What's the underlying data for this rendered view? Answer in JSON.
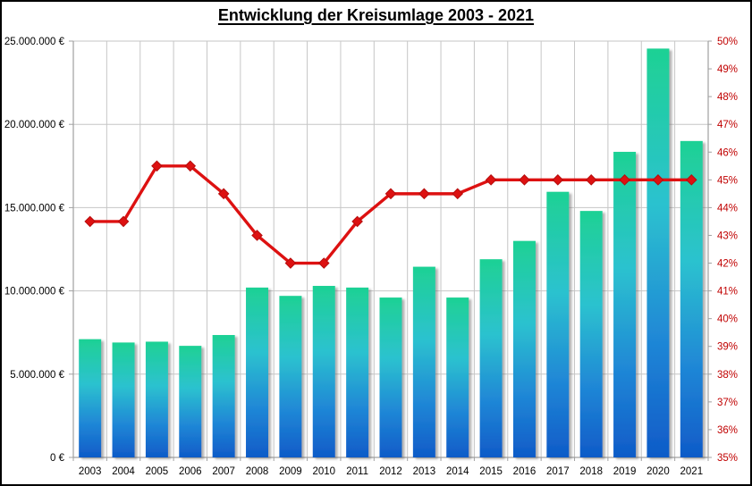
{
  "chart_data": {
    "type": "combo_bar_line",
    "title": "Entwicklung der Kreisumlage 2003 - 2021",
    "categories": [
      "2003",
      "2004",
      "2005",
      "2006",
      "2007",
      "2008",
      "2009",
      "2010",
      "2011",
      "2012",
      "2013",
      "2014",
      "2015",
      "2016",
      "2017",
      "2018",
      "2019",
      "2020",
      "2021"
    ],
    "bar_series": {
      "axis": "left",
      "unit": "EUR",
      "values": [
        7100000,
        6900000,
        6950000,
        6700000,
        7350000,
        10200000,
        9700000,
        10300000,
        10200000,
        9600000,
        11450000,
        9600000,
        11900000,
        13000000,
        15950000,
        14800000,
        18350000,
        24550000,
        19000000
      ]
    },
    "line_series": {
      "axis": "right",
      "unit": "percent",
      "values": [
        43.5,
        43.5,
        45.5,
        45.5,
        44.5,
        43.0,
        42.0,
        42.0,
        43.5,
        44.5,
        44.5,
        44.5,
        45.0,
        45.0,
        45.0,
        45.0,
        45.0,
        45.0,
        45.0
      ]
    },
    "left_axis": {
      "min": 0,
      "max": 25000000,
      "step": 5000000,
      "tick_labels": [
        "0 €",
        "5.000.000 €",
        "10.000.000 €",
        "15.000.000 €",
        "20.000.000 €",
        "25.000.000 €"
      ]
    },
    "right_axis": {
      "min": 35,
      "max": 50,
      "step": 1,
      "tick_labels": [
        "35%",
        "36%",
        "37%",
        "38%",
        "39%",
        "40%",
        "41%",
        "42%",
        "43%",
        "44%",
        "45%",
        "46%",
        "47%",
        "48%",
        "49%",
        "50%"
      ]
    },
    "grid": true,
    "legend": false
  },
  "colors": {
    "bar_gradient_top": "#1ed194",
    "bar_gradient_mid": "#2cc2cf",
    "bar_gradient_low": "#1f86d6",
    "bar_gradient_bottom": "#0f5bc8",
    "line": "#dd1111",
    "line_marker_stroke": "#b50d0d",
    "right_axis_text": "#c00000",
    "left_axis_text": "#000000",
    "year_text": "#000000",
    "grid": "#c6c6c6",
    "axis_line": "#a0a0a0",
    "background": "#ffffff",
    "border": "#000000"
  }
}
